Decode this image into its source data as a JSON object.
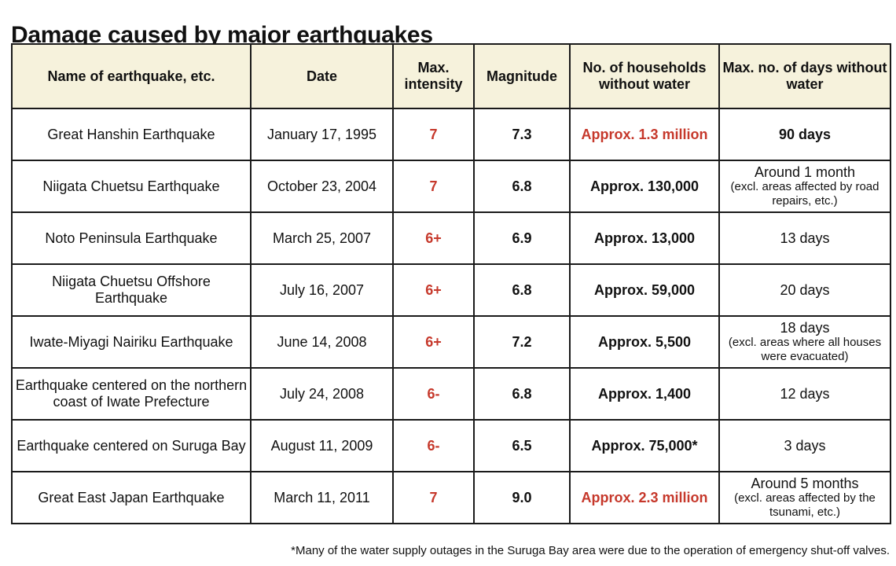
{
  "title": "Damage caused by major earthquakes",
  "colors": {
    "header_bg": "#f6f2dc",
    "accent_red": "#c6382b",
    "border": "#1a1a1a"
  },
  "headers": {
    "name": "Name of earthquake, etc.",
    "date": "Date",
    "intensity": "Max. intensity",
    "magnitude": "Magnitude",
    "households": "No. of households without water",
    "days": "Max. no. of days without water"
  },
  "rows": [
    {
      "name": "Great Hanshin Earthquake",
      "date": "January 17, 1995",
      "intensity": "7",
      "magnitude": "7.3",
      "households": "Approx. 1.3 million",
      "households_red": true,
      "days_main": "90 days",
      "days_bold": true,
      "days_note": ""
    },
    {
      "name": "Niigata Chuetsu Earthquake",
      "date": "October 23, 2004",
      "intensity": "7",
      "magnitude": "6.8",
      "households": "Approx. 130,000",
      "households_red": false,
      "days_main": "Around 1 month",
      "days_bold": false,
      "days_note": "(excl. areas affected by road repairs, etc.)"
    },
    {
      "name": "Noto Peninsula Earthquake",
      "date": "March 25, 2007",
      "intensity": "6+",
      "magnitude": "6.9",
      "households": "Approx. 13,000",
      "households_red": false,
      "days_main": "13 days",
      "days_bold": false,
      "days_note": ""
    },
    {
      "name": "Niigata Chuetsu Offshore Earthquake",
      "date": "July 16, 2007",
      "intensity": "6+",
      "magnitude": "6.8",
      "households": "Approx. 59,000",
      "households_red": false,
      "days_main": "20 days",
      "days_bold": false,
      "days_note": ""
    },
    {
      "name": "Iwate-Miyagi Nairiku Earthquake",
      "date": "June 14, 2008",
      "intensity": "6+",
      "magnitude": "7.2",
      "households": "Approx. 5,500",
      "households_red": false,
      "days_main": "18 days",
      "days_bold": false,
      "days_note": "(excl. areas where all houses were evacuated)"
    },
    {
      "name": "Earthquake centered on the northern coast of Iwate Prefecture",
      "date": "July 24, 2008",
      "intensity": "6-",
      "magnitude": "6.8",
      "households": "Approx. 1,400",
      "households_red": false,
      "days_main": "12 days",
      "days_bold": false,
      "days_note": ""
    },
    {
      "name": "Earthquake centered on Suruga Bay",
      "date": "August 11, 2009",
      "intensity": "6-",
      "magnitude": "6.5",
      "households": "Approx. 75,000*",
      "households_red": false,
      "days_main": "3 days",
      "days_bold": false,
      "days_note": ""
    },
    {
      "name": "Great East Japan Earthquake",
      "date": "March 11, 2011",
      "intensity": "7",
      "magnitude": "9.0",
      "households": "Approx. 2.3 million",
      "households_red": true,
      "days_main": "Around 5 months",
      "days_bold": false,
      "days_note": "(excl. areas affected by the tsunami, etc.)"
    }
  ],
  "footnote": "*Many of the water supply outages in the Suruga Bay area were due to the operation of emergency shut-off valves."
}
